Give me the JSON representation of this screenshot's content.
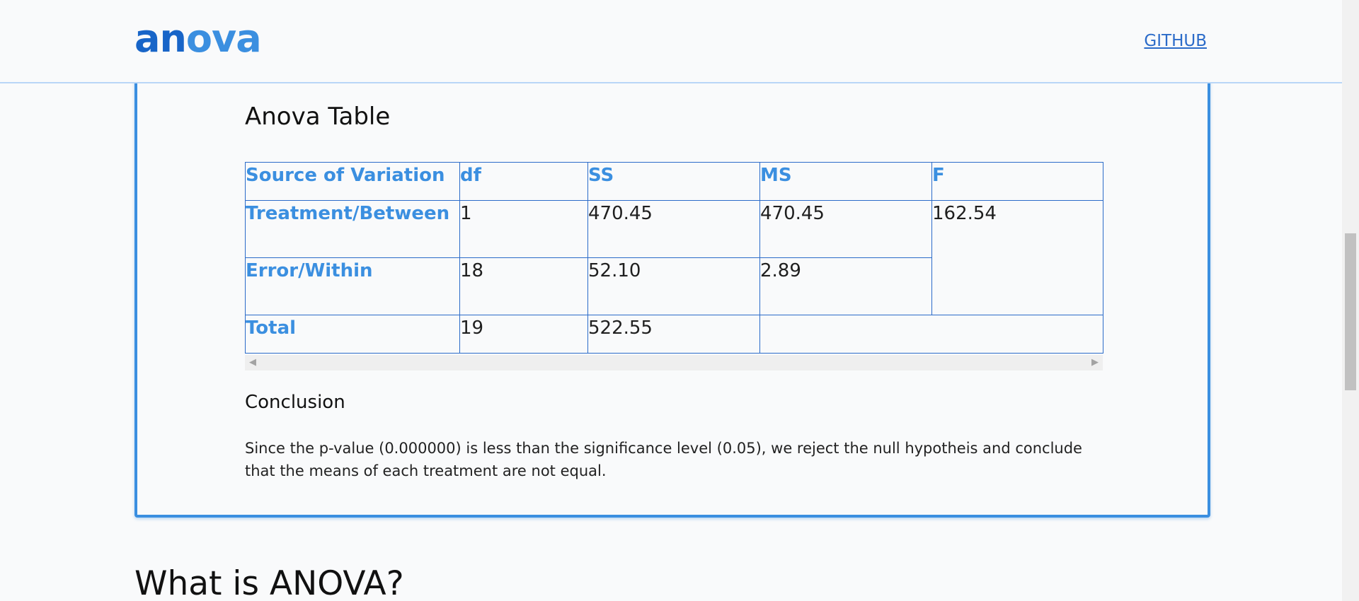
{
  "header": {
    "logo": {
      "part1": "an",
      "part2": "ova"
    },
    "nav_link": "GITHUB"
  },
  "result": {
    "title": "Anova Table",
    "table": {
      "columns": [
        "Source of Variation",
        "df",
        "SS",
        "MS",
        "F"
      ],
      "rows": [
        {
          "source": "Treatment/Between",
          "df": "1",
          "ss": "470.45",
          "ms": "470.45",
          "f": "162.54"
        },
        {
          "source": "Error/Within",
          "df": "18",
          "ss": "52.10",
          "ms": "2.89"
        },
        {
          "source": "Total",
          "df": "19",
          "ss": "522.55"
        }
      ]
    },
    "conclusion_title": "Conclusion",
    "conclusion_text": "Since the p-value (0.000000) is less than the significance level (0.05), we reject the null hypotheis and conclude that the means of each treatment are not equal."
  },
  "next_section": {
    "heading": "What is ANOVA?"
  },
  "icons": {
    "scroll_left": "chevron-left-icon",
    "scroll_right": "chevron-right-icon"
  },
  "colors": {
    "accent": "#3b8fe0",
    "brand_dark": "#1865c8",
    "table_border": "#2b6bc9"
  }
}
